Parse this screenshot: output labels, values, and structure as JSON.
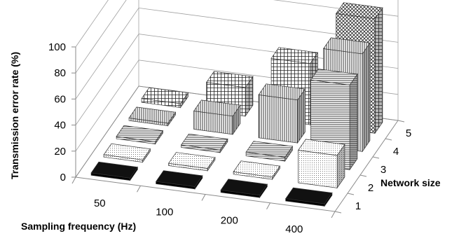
{
  "chart_data": {
    "type": "bar",
    "subtype": "3d-column",
    "title": "",
    "xlabel": "Sampling frequency (Hz)",
    "ylabel": "Network size",
    "zlabel": "Transmission error rate (%)",
    "x_categories": [
      "50",
      "100",
      "200",
      "400"
    ],
    "y_categories": [
      "1",
      "2",
      "3",
      "4",
      "5"
    ],
    "z_ticks": [
      "0",
      "20",
      "40",
      "60",
      "80",
      "100"
    ],
    "zlim": [
      0,
      100
    ],
    "grid": true,
    "legend": "none",
    "values": [
      [
        0,
        0,
        1,
        2,
        3
      ],
      [
        0,
        1,
        2,
        14,
        22
      ],
      [
        0,
        1,
        3,
        33,
        47
      ],
      [
        0,
        25,
        65,
        75,
        88
      ]
    ],
    "series_patterns": [
      {
        "network_size": "1",
        "pattern": "solid-black"
      },
      {
        "network_size": "2",
        "pattern": "dots"
      },
      {
        "network_size": "3",
        "pattern": "horizontal-lines"
      },
      {
        "network_size": "4",
        "pattern": "vertical-lines"
      },
      {
        "network_size": "5",
        "pattern": "grid"
      }
    ],
    "colors": {
      "bar_front": "#ffffff",
      "bar_side": "#bdbdbd",
      "bar_top": "#e6e6e6",
      "grid": "#a0a0a0",
      "axis": "#8a8a8a"
    }
  }
}
